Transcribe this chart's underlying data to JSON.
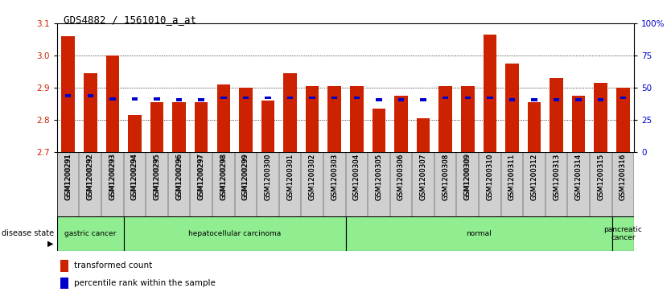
{
  "title": "GDS4882 / 1561010_a_at",
  "samples": [
    "GSM1200291",
    "GSM1200292",
    "GSM1200293",
    "GSM1200294",
    "GSM1200295",
    "GSM1200296",
    "GSM1200297",
    "GSM1200298",
    "GSM1200299",
    "GSM1200300",
    "GSM1200301",
    "GSM1200302",
    "GSM1200303",
    "GSM1200304",
    "GSM1200305",
    "GSM1200306",
    "GSM1200307",
    "GSM1200308",
    "GSM1200309",
    "GSM1200310",
    "GSM1200311",
    "GSM1200312",
    "GSM1200313",
    "GSM1200314",
    "GSM1200315",
    "GSM1200316"
  ],
  "red_values": [
    3.06,
    2.945,
    3.0,
    2.815,
    2.855,
    2.855,
    2.855,
    2.91,
    2.9,
    2.86,
    2.945,
    2.905,
    2.905,
    2.905,
    2.835,
    2.875,
    2.805,
    2.905,
    2.905,
    3.065,
    2.975,
    2.855,
    2.93,
    2.875,
    2.915,
    2.9
  ],
  "blue_values": [
    2.875,
    2.875,
    2.865,
    2.865,
    2.865,
    2.862,
    2.862,
    2.868,
    2.868,
    2.868,
    2.868,
    2.868,
    2.868,
    2.868,
    2.862,
    2.862,
    2.862,
    2.868,
    2.868,
    2.868,
    2.862,
    2.862,
    2.862,
    2.862,
    2.862,
    2.868
  ],
  "ylim_left": [
    2.7,
    3.1
  ],
  "ylim_right": [
    0,
    100
  ],
  "yticks_left": [
    2.7,
    2.8,
    2.9,
    3.0,
    3.1
  ],
  "yticks_right": [
    0,
    25,
    50,
    75,
    100
  ],
  "ytick_labels_right": [
    "0",
    "25",
    "50",
    "75",
    "100%"
  ],
  "bar_color": "#cc2200",
  "dot_color": "#0000cc",
  "plot_bg_color": "#ffffff",
  "tick_color_left": "#cc2200",
  "tick_color_right": "#0000cc",
  "green_color": "#90EE90",
  "groups": [
    {
      "label": "gastric cancer",
      "n": 3
    },
    {
      "label": "hepatocellular carcinoma",
      "n": 10
    },
    {
      "label": "normal",
      "n": 12
    },
    {
      "label": "pancreatic\ncancer",
      "n": 1
    }
  ]
}
